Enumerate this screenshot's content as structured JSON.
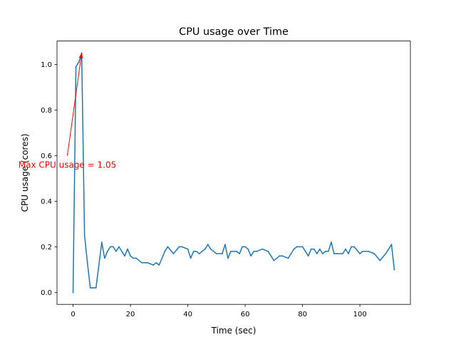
{
  "chart_data": {
    "type": "line",
    "title": "CPU usage over Time",
    "xlabel": "Time (sec)",
    "ylabel": "CPU usage (cores)",
    "xlim": [
      -5.6,
      117.6
    ],
    "ylim": [
      -0.0525,
      1.1025
    ],
    "xticks": [
      0,
      20,
      40,
      60,
      80,
      100
    ],
    "xtick_labels": [
      "0",
      "20",
      "40",
      "60",
      "80",
      "100"
    ],
    "yticks": [
      0.0,
      0.2,
      0.4,
      0.6,
      0.8,
      1.0
    ],
    "ytick_labels": [
      "0.0",
      "0.2",
      "0.4",
      "0.6",
      "0.8",
      "1.0"
    ],
    "grid": false,
    "series": [
      {
        "name": "CPU usage",
        "color": "#1f77b4",
        "x": [
          0,
          1,
          2,
          3,
          4,
          5,
          6,
          7,
          8,
          10,
          11,
          12,
          13,
          14,
          15,
          16,
          18,
          19,
          20,
          21,
          22,
          24,
          26,
          28,
          29,
          30,
          32,
          33,
          35,
          37,
          38,
          40,
          41,
          42,
          43,
          44,
          45,
          46,
          47,
          48,
          50,
          52,
          53,
          54,
          55,
          56,
          57,
          58,
          59,
          60,
          61,
          62,
          63,
          64,
          66,
          68,
          69,
          70,
          72,
          73,
          75,
          77,
          78,
          79,
          80,
          82,
          83,
          84,
          85,
          86,
          87,
          88,
          89,
          90,
          91,
          92,
          94,
          95,
          96,
          97,
          98,
          100,
          101,
          103,
          105,
          107,
          109,
          111,
          112
        ],
        "values": [
          0.0,
          0.99,
          1.01,
          1.05,
          0.25,
          0.13,
          0.02,
          0.02,
          0.02,
          0.22,
          0.15,
          0.18,
          0.2,
          0.2,
          0.18,
          0.2,
          0.16,
          0.19,
          0.16,
          0.15,
          0.15,
          0.13,
          0.13,
          0.12,
          0.13,
          0.12,
          0.18,
          0.2,
          0.17,
          0.2,
          0.2,
          0.19,
          0.15,
          0.18,
          0.18,
          0.17,
          0.18,
          0.19,
          0.21,
          0.19,
          0.17,
          0.17,
          0.21,
          0.15,
          0.18,
          0.18,
          0.18,
          0.17,
          0.2,
          0.2,
          0.19,
          0.16,
          0.18,
          0.18,
          0.19,
          0.18,
          0.16,
          0.14,
          0.16,
          0.16,
          0.15,
          0.19,
          0.2,
          0.2,
          0.2,
          0.16,
          0.19,
          0.19,
          0.17,
          0.19,
          0.17,
          0.18,
          0.18,
          0.22,
          0.17,
          0.17,
          0.17,
          0.19,
          0.17,
          0.2,
          0.2,
          0.17,
          0.18,
          0.18,
          0.17,
          0.14,
          0.17,
          0.21,
          0.1
        ]
      }
    ],
    "annotations": [
      {
        "text": "Max CPU usage = 1.05",
        "color": "#ff0000",
        "xy": [
          3,
          1.05
        ],
        "xytext": [
          -2,
          0.6
        ]
      }
    ]
  }
}
